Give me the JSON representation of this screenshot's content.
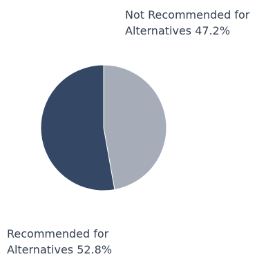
{
  "chart_data": {
    "type": "pie",
    "slices": [
      {
        "label_line1": "Not Recommended for",
        "label_line2": "Alternatives 47.2%",
        "value": 47.2,
        "color": "#a6adb9"
      },
      {
        "label_line1": "Recommended for",
        "label_line2": "Alternatives 52.8%",
        "value": 52.8,
        "color": "#344866"
      }
    ]
  }
}
